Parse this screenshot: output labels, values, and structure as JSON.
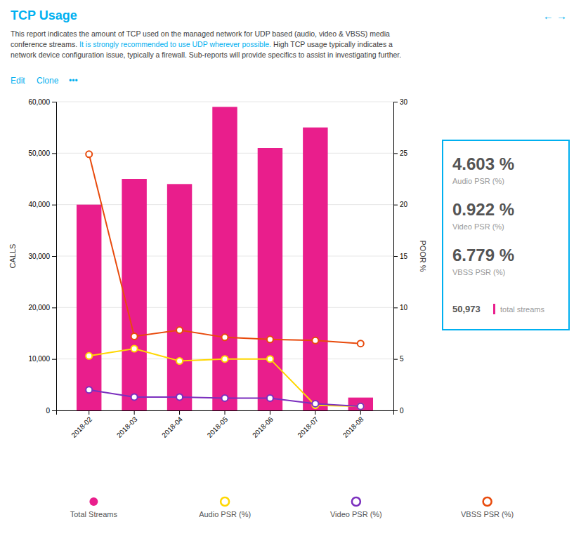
{
  "chart_data": {
    "type": "bar",
    "title": "TCP Usage",
    "subtitle": [
      {
        "text": "This report indicates the amount of TCP used on the managed network for UDP based (audio, video & VBSS) media\nconference streams. ",
        "color": "#3a3a3a"
      },
      {
        "text": "It is strongly recommended to use UDP wherever possible. ",
        "color": "#00b0f0"
      },
      {
        "text": "High TCP usage typically indicates a\nnetwork device configuration issue, typically a firewall. Sub-reports will provide specifics to assist in investigating further.",
        "color": "#3a3a3a"
      }
    ],
    "annotations": [
      "←  →",
      "Edit",
      "Clone",
      "•••",
      "4.603 %",
      "Audio PSR (%)",
      "0.922 %",
      "Video PSR (%)",
      "6.779 %",
      "VBSS PSR (%)",
      "50,973",
      "total streams"
    ],
    "categories": [
      "2018-02",
      "2018-03",
      "2018-04",
      "2018-05",
      "2018-06",
      "2018-07",
      "2018-08"
    ],
    "series": [
      {
        "name": "Total Streams",
        "type": "bar",
        "color": "#e91e8c",
        "values": [
          40000,
          45000,
          44000,
          59000,
          51000,
          55000,
          2500
        ]
      },
      {
        "name": "Audio PSR (%)",
        "type": "line",
        "axis": "y2",
        "marker": "circle",
        "color": "#ffd700",
        "values": [
          5.3,
          6.0,
          4.8,
          5.0,
          5.0,
          0.5,
          0.4
        ]
      },
      {
        "name": "Video PSR (%)",
        "type": "line",
        "axis": "y2",
        "marker": "circle",
        "color": "#7b2fbe",
        "values": [
          2.0,
          1.3,
          1.3,
          1.2,
          1.2,
          0.65,
          0.4
        ]
      },
      {
        "name": "VBSS PSR (%)",
        "type": "line",
        "axis": "y2",
        "marker": "circle",
        "color": "#e84a0c",
        "values": [
          24.9,
          7.2,
          7.8,
          7.1,
          6.9,
          6.8,
          6.5
        ]
      }
    ],
    "y_label": "CALLS",
    "y2_label": "POOR %",
    "ylim": [
      0,
      60000
    ],
    "yticks": [
      0,
      {
        "value": 10000,
        "label": "10,000"
      },
      {
        "value": 20000,
        "label": "20,000"
      },
      {
        "value": 30000,
        "label": "30,000"
      },
      {
        "value": 40000,
        "label": "40,000"
      },
      {
        "value": 50000,
        "label": "50,000"
      },
      {
        "value": 60000,
        "label": "60,000"
      }
    ],
    "y2lim": [
      0,
      30
    ],
    "y2ticks": [
      0,
      5,
      10,
      15,
      20,
      25,
      30
    ],
    "grid": true,
    "legend": "bottom"
  }
}
